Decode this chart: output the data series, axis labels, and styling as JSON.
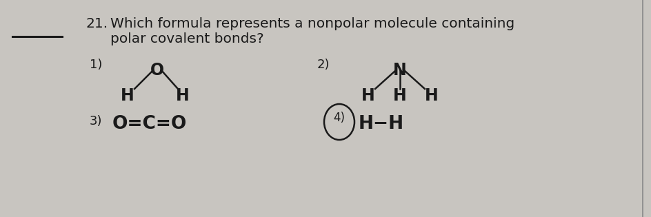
{
  "bg_color": "#c8c5c0",
  "font_color": "#1a1a1a",
  "question_number": "21.",
  "question_line1": "Which formula represents a nonpolar molecule containing",
  "question_line2": "polar covalent bonds?",
  "title_fontsize": 14.5,
  "label_fontsize": 13,
  "mol_fontsize": 17,
  "mol_bold": true
}
